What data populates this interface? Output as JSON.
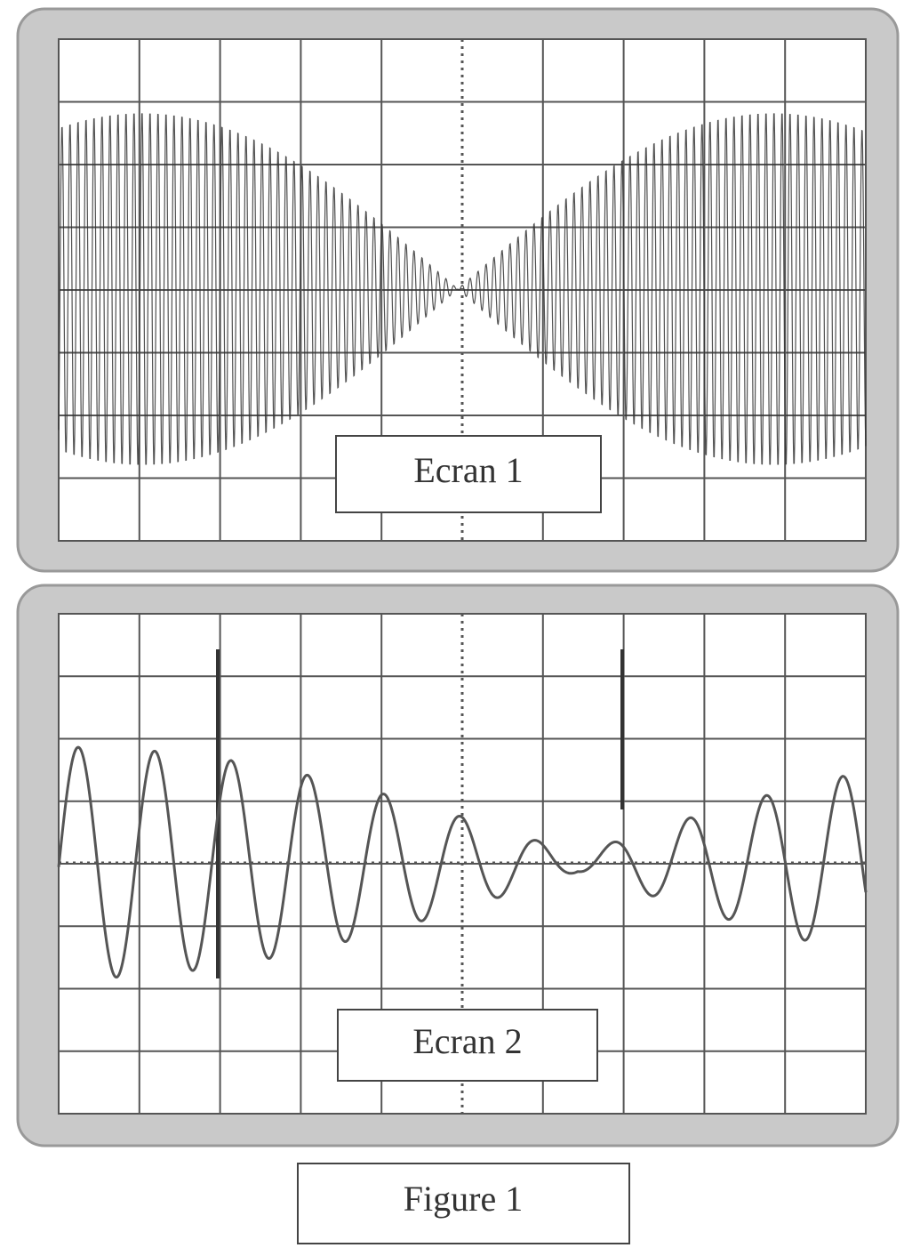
{
  "screens": [
    {
      "label": "Ecran 1"
    },
    {
      "label": "Ecran 2"
    }
  ],
  "caption": "Figure 1"
}
